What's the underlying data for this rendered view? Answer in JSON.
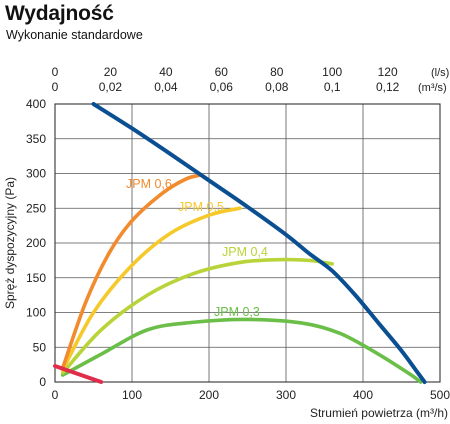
{
  "header": {
    "title": "Wydajność",
    "subtitle": "Wykonanie standardowe"
  },
  "chart_data": {
    "type": "line",
    "xlabel": "Strumień powietrza (m³/h)",
    "ylabel": "Spręż dyspozycyjny (Pa)",
    "xlim": [
      0,
      500
    ],
    "ylim": [
      0,
      400
    ],
    "x_ticks": [
      "0",
      "100",
      "200",
      "300",
      "400",
      "500"
    ],
    "y_ticks": [
      "0",
      "50",
      "100",
      "150",
      "200",
      "250",
      "300",
      "350",
      "400"
    ],
    "top_axis_ls": {
      "unit": "(l/s)",
      "ticks": [
        "0",
        "20",
        "40",
        "60",
        "80",
        "100",
        "120"
      ]
    },
    "top_axis_m3s": {
      "unit": "(m³/s)",
      "ticks": [
        "0",
        "0,02",
        "0,04",
        "0,06",
        "0,08",
        "0,1",
        "0,12"
      ]
    },
    "grid": true,
    "colors": {
      "system": "#0b4f93",
      "jpm06": "#f28a2e",
      "jpm05": "#f6c92b",
      "jpm04": "#b9d43a",
      "jpm03": "#6bbf48",
      "limit": "#e02d4a"
    },
    "series": [
      {
        "key": "system",
        "color": "#0b4f93",
        "points": [
          [
            50,
            400
          ],
          [
            100,
            365
          ],
          [
            150,
            328
          ],
          [
            200,
            290
          ],
          [
            250,
            252
          ],
          [
            300,
            212
          ],
          [
            330,
            185
          ],
          [
            360,
            160
          ],
          [
            390,
            125
          ],
          [
            420,
            85
          ],
          [
            450,
            45
          ],
          [
            470,
            15
          ],
          [
            480,
            0
          ]
        ]
      },
      {
        "key": "jpm06",
        "name": "JPM 0,6",
        "color": "#f28a2e",
        "points": [
          [
            10,
            20
          ],
          [
            40,
            115
          ],
          [
            70,
            185
          ],
          [
            100,
            232
          ],
          [
            140,
            272
          ],
          [
            170,
            292
          ],
          [
            190,
            298
          ]
        ]
      },
      {
        "key": "jpm05",
        "name": "JPM 0,5",
        "color": "#f6c92b",
        "points": [
          [
            10,
            17
          ],
          [
            50,
            100
          ],
          [
            100,
            168
          ],
          [
            150,
            214
          ],
          [
            200,
            240
          ],
          [
            240,
            250
          ]
        ]
      },
      {
        "key": "jpm04",
        "name": "JPM 0,4",
        "color": "#b9d43a",
        "points": [
          [
            10,
            13
          ],
          [
            60,
            75
          ],
          [
            120,
            125
          ],
          [
            180,
            156
          ],
          [
            240,
            172
          ],
          [
            290,
            176
          ],
          [
            330,
            175
          ],
          [
            360,
            170
          ]
        ]
      },
      {
        "key": "jpm03",
        "name": "JPM 0,3",
        "color": "#6bbf48",
        "points": [
          [
            10,
            10
          ],
          [
            60,
            40
          ],
          [
            120,
            75
          ],
          [
            180,
            86
          ],
          [
            250,
            90
          ],
          [
            320,
            85
          ],
          [
            370,
            70
          ],
          [
            420,
            40
          ],
          [
            460,
            12
          ],
          [
            475,
            0
          ]
        ]
      },
      {
        "key": "limit",
        "color": "#e02d4a",
        "points": [
          [
            0,
            23
          ],
          [
            60,
            0
          ]
        ]
      }
    ]
  }
}
